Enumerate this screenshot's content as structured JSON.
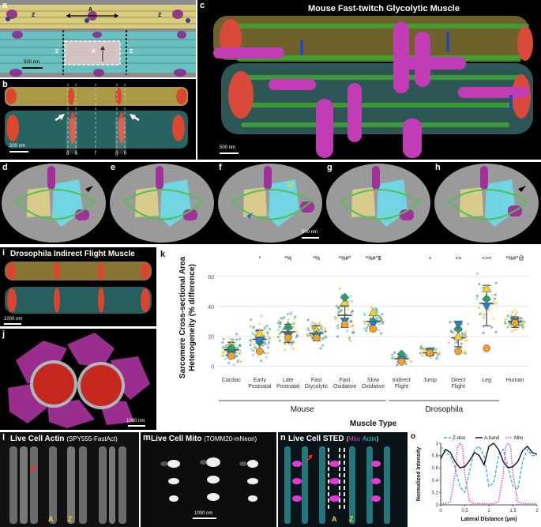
{
  "panel_labels": [
    "a",
    "b",
    "c",
    "d",
    "e",
    "f",
    "g",
    "h",
    "i",
    "j",
    "k",
    "l",
    "m",
    "n",
    "o"
  ],
  "panel_a": {
    "label_A": "A",
    "label_Z": "Z",
    "scale": "500 nm"
  },
  "panel_b": {
    "scale": "500 nm",
    "markers": [
      "d",
      "e",
      "f",
      "g",
      "h"
    ]
  },
  "panel_c": {
    "title": "Mouse Fast-twitch Glycolytic Muscle",
    "scale": "500 nm"
  },
  "panel_f": {
    "scale": "500 nm"
  },
  "panel_i": {
    "title": "Drosophila Indirect Flight Muscle",
    "scale": "1000 nm"
  },
  "panel_j": {
    "scale": "1000 nm"
  },
  "panel_l": {
    "title": "Live Cell Actin",
    "subtitle": "(SPY555-FastAct)",
    "label_A": "A",
    "label_Z": "Z"
  },
  "panel_m": {
    "title": "Live Cell Mito",
    "subtitle": "(TOMM20-mNeon)",
    "scale": "1000 nm"
  },
  "panel_n": {
    "title": "Live Cell STED",
    "sub_mito": "Mito",
    "sub_actin": "Actin",
    "label_A": "A",
    "label_Z": "Z"
  },
  "chart_data": [
    {
      "panel": "k",
      "type": "scatter",
      "ylabel": "Sarcomere Cross-sectional Area Heterogeneity (% difference)",
      "xlabel": "Muscle Type",
      "ylim": [
        -5,
        70
      ],
      "yticks": [
        0,
        20,
        40,
        60
      ],
      "categories": [
        "Cardiac",
        "Early Postnatal",
        "Late Postnatal",
        "Fast Glycolytic",
        "Fast Oxidative",
        "Slow Oxidative",
        "Indirect Flight",
        "Jump",
        "Direct Flight",
        "Leg",
        "Human"
      ],
      "significance": [
        "",
        "*",
        "*%",
        "*%",
        "*%#^",
        "*%#^$",
        "",
        "+",
        "+>",
        "+><",
        "*%#^@"
      ],
      "groups": [
        {
          "label": "Mouse",
          "from": 0,
          "to": 5
        },
        {
          "label": "Drosophila",
          "from": 6,
          "to": 9
        }
      ],
      "mean": [
        11,
        18,
        23,
        22,
        34,
        30,
        5,
        9,
        19,
        42,
        30
      ],
      "sd_low": [
        6,
        10,
        16,
        17,
        26,
        25,
        3,
        7,
        13,
        27,
        26
      ],
      "sd_high": [
        16,
        24,
        28,
        27,
        40,
        34,
        8,
        11,
        24,
        54,
        33
      ],
      "series": [
        {
          "name": "",
          "marker": "triangle",
          "color": "#f4d432",
          "values": [
            14,
            22,
            27,
            24,
            43,
            36,
            5,
            10,
            20,
            52,
            31
          ]
        },
        {
          "name": "",
          "marker": "diamond",
          "color": "#2a9d72",
          "values": [
            12,
            16,
            26,
            21,
            46,
            30,
            8,
            9,
            25,
            45,
            29
          ]
        },
        {
          "name": "",
          "marker": "inverted-triangle",
          "color": "#2a7fc0",
          "values": [
            8,
            17,
            20,
            20,
            30,
            28,
            4,
            10,
            28,
            40,
            30
          ]
        },
        {
          "name": "",
          "marker": "circle",
          "color": "#f0a32a",
          "values": [
            7,
            10,
            19,
            19,
            28,
            25,
            3,
            9,
            10,
            12,
            29
          ]
        }
      ],
      "point_cloud_counts": [
        70,
        70,
        55,
        60,
        45,
        50,
        20,
        25,
        35,
        25,
        55
      ]
    },
    {
      "panel": "o",
      "type": "line",
      "xlabel": "Lateral Distance (µm)",
      "ylabel": "Normalized Intensity",
      "xlim": [
        0,
        2
      ],
      "ylim": [
        0,
        1
      ],
      "xticks": [
        0,
        0.5,
        1,
        1.5,
        2
      ],
      "yticks": [
        0,
        0.2,
        0.4,
        0.6,
        0.8,
        1
      ],
      "series": [
        {
          "name": "Z-disk",
          "color": "#3fb6d8",
          "dash": "dashed",
          "x": [
            0,
            0.1,
            0.2,
            0.3,
            0.4,
            0.5,
            0.6,
            0.7,
            0.8,
            0.9,
            1.0,
            1.1,
            1.2,
            1.3,
            1.4,
            1.5,
            1.6,
            1.7,
            1.8,
            1.9,
            2.0
          ],
          "y": [
            0.95,
            0.85,
            0.8,
            0.6,
            0.3,
            0.2,
            0.55,
            0.9,
            0.95,
            0.8,
            0.3,
            0.35,
            0.8,
            0.9,
            0.6,
            0.3,
            0.25,
            0.7,
            0.9,
            0.8,
            0.8
          ]
        },
        {
          "name": "A-band",
          "color": "#111111",
          "dash": "solid",
          "x": [
            0,
            0.1,
            0.2,
            0.3,
            0.4,
            0.5,
            0.6,
            0.7,
            0.8,
            0.9,
            1.0,
            1.1,
            1.2,
            1.3,
            1.4,
            1.5,
            1.6,
            1.7,
            1.8,
            1.9,
            2.0
          ],
          "y": [
            0.75,
            0.9,
            0.85,
            0.7,
            0.6,
            0.62,
            0.72,
            0.85,
            0.8,
            0.65,
            0.95,
            1.0,
            0.9,
            0.7,
            0.6,
            0.62,
            0.7,
            0.88,
            0.95,
            0.85,
            0.82
          ]
        },
        {
          "name": "Mito",
          "color": "#e040c8",
          "dash": "dotted",
          "x": [
            0,
            0.1,
            0.2,
            0.3,
            0.35,
            0.4,
            0.45,
            0.5,
            0.6,
            0.7,
            0.8,
            0.9,
            1.0,
            1.1,
            1.2,
            1.3,
            1.35,
            1.4,
            1.45,
            1.5,
            1.6,
            1.7,
            1.8,
            2.0
          ],
          "y": [
            0.02,
            0.02,
            0.05,
            0.5,
            0.95,
            1.0,
            0.95,
            0.5,
            0.05,
            0.02,
            0.02,
            0.02,
            0.02,
            0.02,
            0.05,
            0.5,
            0.95,
            1.0,
            0.95,
            0.5,
            0.05,
            0.02,
            0.02,
            0.02
          ]
        }
      ]
    }
  ]
}
